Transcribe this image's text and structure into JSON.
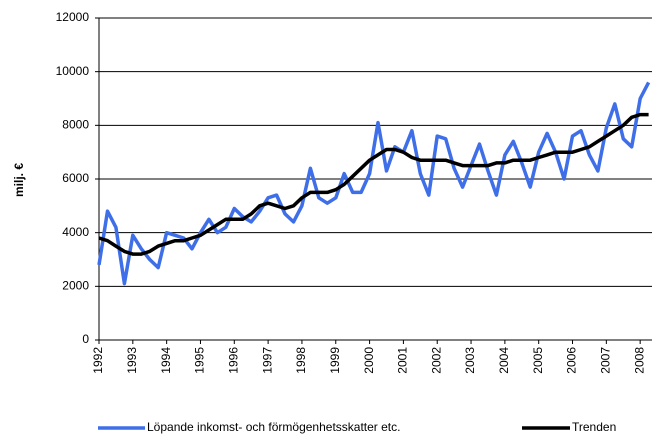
{
  "chart_data": {
    "type": "line",
    "ylabel": "milj. €",
    "x": [
      1992,
      1992.25,
      1992.5,
      1992.75,
      1993,
      1993.25,
      1993.5,
      1993.75,
      1994,
      1994.25,
      1994.5,
      1994.75,
      1995,
      1995.25,
      1995.5,
      1995.75,
      1996,
      1996.25,
      1996.5,
      1996.75,
      1997,
      1997.25,
      1997.5,
      1997.75,
      1998,
      1998.25,
      1998.5,
      1998.75,
      1999,
      1999.25,
      1999.5,
      1999.75,
      2000,
      2000.25,
      2000.5,
      2000.75,
      2001,
      2001.25,
      2001.5,
      2001.75,
      2002,
      2002.25,
      2002.5,
      2002.75,
      2003,
      2003.25,
      2003.5,
      2003.75,
      2004,
      2004.25,
      2004.5,
      2004.75,
      2005,
      2005.25,
      2005.5,
      2005.75,
      2006,
      2006.25,
      2006.5,
      2006.75,
      2007,
      2007.25,
      2007.5,
      2007.75,
      2008,
      2008.25
    ],
    "series": [
      {
        "name": "Löpande inkomst- och förmögenhetsskatter etc.",
        "color": "#3f6fe8",
        "values": [
          2800,
          4800,
          4200,
          2100,
          3900,
          3400,
          3000,
          2700,
          4000,
          3900,
          3800,
          3400,
          4000,
          4500,
          4000,
          4200,
          4900,
          4600,
          4400,
          4800,
          5300,
          5400,
          4700,
          4400,
          5000,
          6400,
          5300,
          5100,
          5300,
          6200,
          5500,
          5500,
          6200,
          8100,
          6300,
          7200,
          7000,
          7800,
          6200,
          5400,
          7600,
          7500,
          6400,
          5700,
          6500,
          7300,
          6300,
          5400,
          6900,
          7400,
          6600,
          5700,
          7000,
          7700,
          7000,
          6000,
          7600,
          7800,
          6900,
          6300,
          7900,
          8800,
          7500,
          7200,
          9000,
          9600
        ]
      },
      {
        "name": "Trenden",
        "color": "#000000",
        "values": [
          3800,
          3700,
          3500,
          3300,
          3200,
          3200,
          3300,
          3500,
          3600,
          3700,
          3700,
          3800,
          3900,
          4100,
          4300,
          4500,
          4500,
          4500,
          4700,
          5000,
          5100,
          5000,
          4900,
          5000,
          5300,
          5500,
          5500,
          5500,
          5600,
          5800,
          6100,
          6400,
          6700,
          6900,
          7100,
          7100,
          7000,
          6800,
          6700,
          6700,
          6700,
          6700,
          6600,
          6500,
          6500,
          6500,
          6500,
          6600,
          6600,
          6700,
          6700,
          6700,
          6800,
          6900,
          7000,
          7000,
          7000,
          7100,
          7200,
          7400,
          7600,
          7800,
          8000,
          8300,
          8400,
          8400
        ]
      }
    ],
    "xlim": [
      1992,
      2008.35
    ],
    "xticks": [
      1992,
      1993,
      1994,
      1995,
      1996,
      1997,
      1998,
      1999,
      2000,
      2001,
      2002,
      2003,
      2004,
      2005,
      2006,
      2007,
      2008
    ],
    "ylim": [
      0,
      12000
    ],
    "yticks": [
      0,
      2000,
      4000,
      6000,
      8000,
      10000,
      12000
    ],
    "grid": true,
    "legend": "bottom"
  }
}
